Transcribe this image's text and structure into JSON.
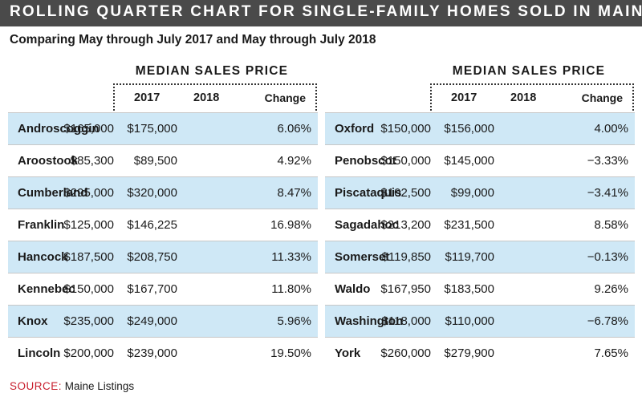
{
  "title": "ROLLING QUARTER CHART FOR SINGLE-FAMILY HOMES SOLD IN MAINE",
  "subtitle": "Comparing May through July 2017 and May through July 2018",
  "group_header": "MEDIAN SALES PRICE",
  "columns": {
    "y2017": "2017",
    "y2018": "2018",
    "change": "Change"
  },
  "left_table": [
    {
      "county": "Androscoggin",
      "y2017": "$165,000",
      "y2018": "$175,000",
      "change": "6.06%"
    },
    {
      "county": "Aroostook",
      "y2017": "$85,300",
      "y2018": "$89,500",
      "change": "4.92%"
    },
    {
      "county": "Cumberland",
      "y2017": "$295,000",
      "y2018": "$320,000",
      "change": "8.47%"
    },
    {
      "county": "Franklin",
      "y2017": "$125,000",
      "y2018": "$146,225",
      "change": "16.98%"
    },
    {
      "county": "Hancock",
      "y2017": "$187,500",
      "y2018": "$208,750",
      "change": "11.33%"
    },
    {
      "county": "Kennebec",
      "y2017": "$150,000",
      "y2018": "$167,700",
      "change": "11.80%"
    },
    {
      "county": "Knox",
      "y2017": "$235,000",
      "y2018": "$249,000",
      "change": "5.96%"
    },
    {
      "county": "Lincoln",
      "y2017": "$200,000",
      "y2018": "$239,000",
      "change": "19.50%"
    }
  ],
  "right_table": [
    {
      "county": "Oxford",
      "y2017": "$150,000",
      "y2018": "$156,000",
      "change": "4.00%"
    },
    {
      "county": "Penobscot",
      "y2017": "$150,000",
      "y2018": "$145,000",
      "change": "−3.33%"
    },
    {
      "county": "Piscataquis",
      "y2017": "$102,500",
      "y2018": "$99,000",
      "change": "−3.41%"
    },
    {
      "county": "Sagadahoc",
      "y2017": "$213,200",
      "y2018": "$231,500",
      "change": "8.58%"
    },
    {
      "county": "Somerset",
      "y2017": "$119,850",
      "y2018": "$119,700",
      "change": "−0.13%"
    },
    {
      "county": "Waldo",
      "y2017": "$167,950",
      "y2018": "$183,500",
      "change": "9.26%"
    },
    {
      "county": "Washington",
      "y2017": "$118,000",
      "y2018": "$110,000",
      "change": "−6.78%"
    },
    {
      "county": "York",
      "y2017": "$260,000",
      "y2018": "$279,900",
      "change": "7.65%"
    }
  ],
  "source": {
    "label": "SOURCE:",
    "text": "Maine Listings"
  },
  "colors": {
    "title_bar": "#4a4a4a",
    "row_shade": "#cfe8f6",
    "source_label": "#c8202f"
  }
}
